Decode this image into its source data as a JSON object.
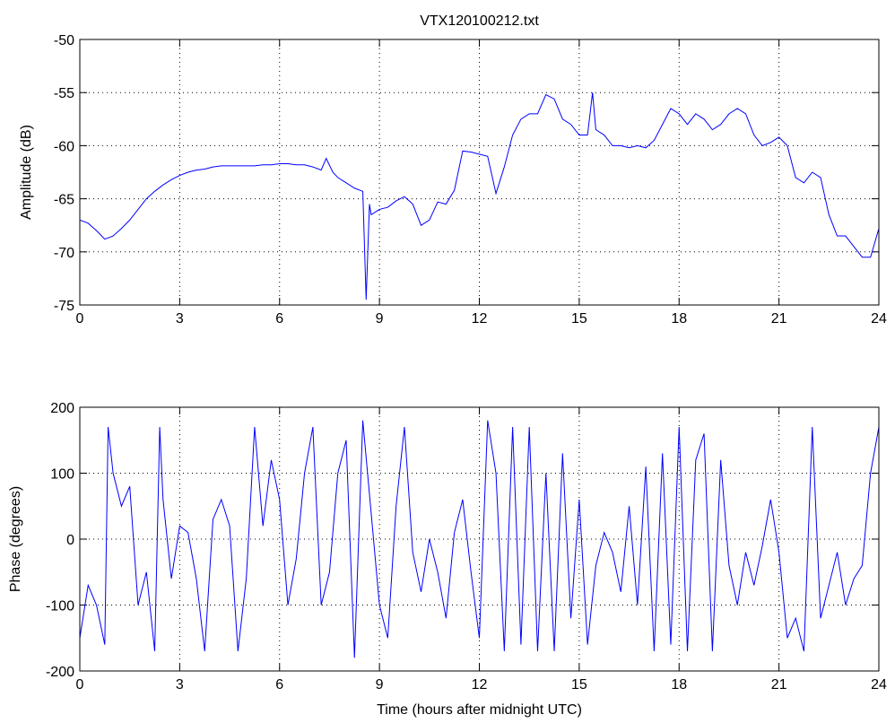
{
  "chart_data": [
    {
      "type": "line",
      "title": "VTX120100212.txt",
      "ylabel": "Amplitude (dB)",
      "color": "#0000ff",
      "grid": true,
      "xlim": [
        0,
        24
      ],
      "xticks": [
        0,
        3,
        6,
        9,
        12,
        15,
        18,
        21,
        24
      ],
      "ylim": [
        -75,
        -50
      ],
      "yticks": [
        -75,
        -70,
        -65,
        -60,
        -55,
        -50
      ],
      "x": [
        0,
        0.25,
        0.5,
        0.75,
        1,
        1.25,
        1.5,
        1.75,
        2,
        2.25,
        2.5,
        2.75,
        3,
        3.25,
        3.5,
        3.75,
        4,
        4.25,
        4.5,
        4.75,
        5,
        5.25,
        5.5,
        5.75,
        6,
        6.25,
        6.5,
        6.75,
        7,
        7.25,
        7.4,
        7.6,
        7.75,
        8,
        8.25,
        8.5,
        8.6,
        8.7,
        8.75,
        9,
        9.25,
        9.5,
        9.75,
        10,
        10.25,
        10.5,
        10.75,
        11,
        11.25,
        11.5,
        11.75,
        12,
        12.25,
        12.5,
        12.75,
        13,
        13.25,
        13.5,
        13.75,
        14,
        14.25,
        14.5,
        14.75,
        15,
        15.25,
        15.4,
        15.5,
        15.75,
        16,
        16.25,
        16.5,
        16.75,
        17,
        17.25,
        17.5,
        17.75,
        18,
        18.25,
        18.5,
        18.75,
        19,
        19.25,
        19.5,
        19.75,
        20,
        20.25,
        20.5,
        20.75,
        21,
        21.25,
        21.5,
        21.75,
        22,
        22.25,
        22.5,
        22.75,
        23,
        23.25,
        23.5,
        23.75,
        24
      ],
      "values": [
        -67,
        -67.3,
        -68,
        -68.8,
        -68.5,
        -67.8,
        -67,
        -66,
        -65,
        -64.3,
        -63.7,
        -63.2,
        -62.8,
        -62.5,
        -62.3,
        -62.2,
        -62,
        -61.9,
        -61.9,
        -61.9,
        -61.9,
        -61.9,
        -61.8,
        -61.8,
        -61.7,
        -61.7,
        -61.8,
        -61.8,
        -62,
        -62.3,
        -61.2,
        -62.5,
        -63,
        -63.5,
        -64,
        -64.3,
        -74.5,
        -65.5,
        -66.5,
        -66,
        -65.8,
        -65.2,
        -64.8,
        -65.5,
        -67.5,
        -67,
        -65.3,
        -65.5,
        -64.2,
        -60.5,
        -60.6,
        -60.8,
        -61,
        -64.5,
        -62,
        -59,
        -57.5,
        -57,
        -57,
        -55.2,
        -55.6,
        -57.5,
        -58,
        -59,
        -59,
        -55,
        -58.5,
        -59,
        -60,
        -60,
        -60.2,
        -60,
        -60.2,
        -59.5,
        -58,
        -56.5,
        -57,
        -58,
        -57,
        -57.5,
        -58.5,
        -58,
        -57,
        -56.5,
        -57,
        -59,
        -60,
        -59.7,
        -59.2,
        -60,
        -63,
        -63.5,
        -62.5,
        -63,
        -66.5,
        -68.5,
        -68.5,
        -69.5,
        -70.5,
        -70.5,
        -67.8
      ]
    },
    {
      "type": "line",
      "xlabel": "Time (hours after midnight UTC)",
      "ylabel": "Phase (degrees)",
      "color": "#0000ff",
      "grid": true,
      "xlim": [
        0,
        24
      ],
      "xticks": [
        0,
        3,
        6,
        9,
        12,
        15,
        18,
        21,
        24
      ],
      "ylim": [
        -200,
        200
      ],
      "yticks": [
        -200,
        -100,
        0,
        100,
        200
      ],
      "x": [
        0,
        0.25,
        0.5,
        0.75,
        0.85,
        1,
        1.25,
        1.5,
        1.75,
        2,
        2.25,
        2.4,
        2.5,
        2.75,
        3,
        3.25,
        3.5,
        3.75,
        4,
        4.25,
        4.5,
        4.75,
        5,
        5.25,
        5.5,
        5.75,
        6,
        6.25,
        6.5,
        6.75,
        7,
        7.25,
        7.5,
        7.75,
        8,
        8.25,
        8.5,
        8.75,
        9,
        9.25,
        9.5,
        9.75,
        10,
        10.25,
        10.5,
        10.75,
        11,
        11.25,
        11.5,
        11.75,
        12,
        12.25,
        12.5,
        12.75,
        13,
        13.25,
        13.5,
        13.75,
        14,
        14.25,
        14.5,
        14.75,
        15,
        15.25,
        15.5,
        15.75,
        16,
        16.25,
        16.5,
        16.75,
        17,
        17.25,
        17.5,
        17.75,
        18,
        18.25,
        18.5,
        18.75,
        19,
        19.25,
        19.5,
        19.75,
        20,
        20.25,
        20.5,
        20.75,
        21,
        21.25,
        21.5,
        21.75,
        22,
        22.25,
        22.5,
        22.75,
        23,
        23.25,
        23.5,
        23.75,
        24
      ],
      "values": [
        -150,
        -70,
        -100,
        -160,
        170,
        100,
        50,
        80,
        -100,
        -50,
        -170,
        170,
        60,
        -60,
        20,
        10,
        -60,
        -170,
        30,
        60,
        20,
        -170,
        -60,
        170,
        20,
        120,
        60,
        -100,
        -30,
        100,
        170,
        -100,
        -50,
        100,
        150,
        -180,
        180,
        40,
        -100,
        -150,
        50,
        170,
        -20,
        -80,
        0,
        -50,
        -120,
        10,
        60,
        -50,
        -150,
        180,
        100,
        -170,
        170,
        -160,
        170,
        -170,
        100,
        -170,
        130,
        -120,
        60,
        -160,
        -40,
        10,
        -20,
        -80,
        50,
        -100,
        110,
        -170,
        130,
        -160,
        170,
        -170,
        120,
        160,
        -170,
        120,
        -40,
        -100,
        -20,
        -70,
        -10,
        60,
        -20,
        -150,
        -120,
        -170,
        170,
        -120,
        -70,
        -20,
        -100,
        -60,
        -40,
        100,
        170
      ]
    }
  ]
}
